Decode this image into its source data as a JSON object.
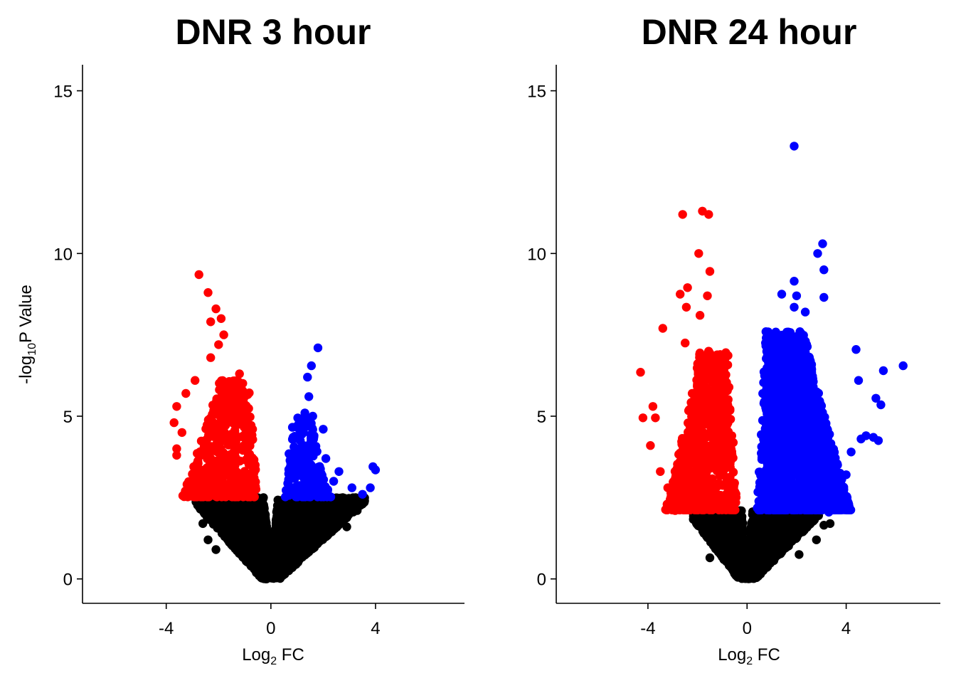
{
  "colors": {
    "down": "#ff0000",
    "up": "#0000ff",
    "ns": "#000000",
    "axis": "#000000",
    "background": "#ffffff"
  },
  "chart_data": [
    {
      "type": "scatter",
      "title": "DNR 3 hour",
      "xlabel_main": "Log",
      "xlabel_sub": "2",
      "xlabel_tail": " FC",
      "ylabel_pre": "-log",
      "ylabel_sub": "10",
      "ylabel_tail": "P Value",
      "xlim": [
        -7.2,
        7.4
      ],
      "ylim": [
        -0.75,
        15.8
      ],
      "xticks": [
        -4,
        0,
        4
      ],
      "xtick_labels": [
        "-4",
        "0",
        "4"
      ],
      "yticks": [
        0,
        5,
        10,
        15
      ],
      "ytick_labels": [
        "0",
        "5",
        "10",
        "15"
      ],
      "significance_threshold": 2.5,
      "grid": false,
      "legend": "none",
      "highlight_points": {
        "down": [
          [
            -2.75,
            9.35
          ],
          [
            -2.4,
            8.8
          ],
          [
            -2.1,
            8.3
          ],
          [
            -1.9,
            8.0
          ],
          [
            -2.3,
            7.9
          ],
          [
            -1.8,
            7.5
          ],
          [
            -2.0,
            7.2
          ],
          [
            -2.3,
            6.8
          ],
          [
            -2.9,
            6.1
          ],
          [
            -3.25,
            5.7
          ],
          [
            -3.6,
            5.3
          ],
          [
            -3.7,
            4.8
          ],
          [
            -3.4,
            4.5
          ],
          [
            -3.6,
            4.0
          ],
          [
            -3.6,
            3.8
          ],
          [
            -3.3,
            2.6
          ],
          [
            -1.2,
            6.3
          ],
          [
            -0.7,
            4.6
          ]
        ],
        "up": [
          [
            1.8,
            7.1
          ],
          [
            1.55,
            6.55
          ],
          [
            1.4,
            6.2
          ],
          [
            1.45,
            5.6
          ],
          [
            1.3,
            5.1
          ],
          [
            1.6,
            5.0
          ],
          [
            2.0,
            4.6
          ],
          [
            2.1,
            3.7
          ],
          [
            2.6,
            3.3
          ],
          [
            3.9,
            3.45
          ],
          [
            4.0,
            3.35
          ],
          [
            3.8,
            2.8
          ],
          [
            3.5,
            2.6
          ],
          [
            3.1,
            2.8
          ],
          [
            2.4,
            3.0
          ]
        ]
      },
      "cloud": {
        "down": {
          "x_range": [
            -3.4,
            -0.5
          ],
          "y_range": [
            2.5,
            6.1
          ],
          "n": 520
        },
        "up": {
          "x_range": [
            0.5,
            2.3
          ],
          "y_range": [
            2.5,
            5.0
          ],
          "n": 220
        },
        "ns_left": {
          "x_range": [
            -2.9,
            0
          ],
          "y_max": 2.5,
          "n": 1500
        },
        "ns_right": {
          "x_range": [
            0,
            3.6
          ],
          "y_max": 2.5,
          "n": 1700
        },
        "outliers": [
          [
            -2.4,
            1.2
          ],
          [
            -2.6,
            1.7
          ],
          [
            -2.1,
            0.9
          ],
          [
            3.3,
            2.1
          ],
          [
            3.5,
            2.3
          ],
          [
            2.9,
            1.6
          ]
        ]
      }
    },
    {
      "type": "scatter",
      "title": "DNR 24 hour",
      "xlabel_main": "Log",
      "xlabel_sub": "2",
      "xlabel_tail": " FC",
      "ylabel_pre": "",
      "ylabel_sub": "",
      "ylabel_tail": "",
      "xlim": [
        -7.7,
        7.8
      ],
      "ylim": [
        -0.75,
        15.8
      ],
      "xticks": [
        -4,
        0,
        4
      ],
      "xtick_labels": [
        "-4",
        "0",
        "4"
      ],
      "yticks": [
        0,
        5,
        10,
        15
      ],
      "ytick_labels": [
        "0",
        "5",
        "10",
        "15"
      ],
      "significance_threshold": 2.1,
      "grid": false,
      "legend": "none",
      "highlight_points": {
        "down": [
          [
            -2.6,
            11.2
          ],
          [
            -1.8,
            11.3
          ],
          [
            -1.55,
            11.2
          ],
          [
            -1.95,
            10.0
          ],
          [
            -1.5,
            9.45
          ],
          [
            -2.4,
            8.95
          ],
          [
            -2.45,
            8.35
          ],
          [
            -2.7,
            8.75
          ],
          [
            -1.6,
            8.7
          ],
          [
            -1.9,
            8.1
          ],
          [
            -3.4,
            7.7
          ],
          [
            -2.5,
            7.25
          ],
          [
            -4.3,
            6.35
          ],
          [
            -3.8,
            5.3
          ],
          [
            -4.2,
            4.95
          ],
          [
            -3.7,
            4.95
          ],
          [
            -3.9,
            4.1
          ],
          [
            -3.5,
            3.3
          ],
          [
            -3.2,
            2.8
          ],
          [
            -3.1,
            2.45
          ],
          [
            -2.9,
            2.1
          ]
        ],
        "up": [
          [
            1.9,
            13.3
          ],
          [
            3.05,
            10.3
          ],
          [
            2.85,
            10.0
          ],
          [
            3.1,
            9.5
          ],
          [
            1.9,
            9.15
          ],
          [
            1.4,
            8.75
          ],
          [
            2.0,
            8.7
          ],
          [
            3.1,
            8.65
          ],
          [
            1.9,
            8.35
          ],
          [
            2.35,
            8.2
          ],
          [
            4.4,
            7.05
          ],
          [
            6.3,
            6.55
          ],
          [
            5.5,
            6.4
          ],
          [
            4.5,
            6.1
          ],
          [
            5.2,
            5.55
          ],
          [
            5.4,
            5.35
          ],
          [
            5.1,
            4.35
          ],
          [
            5.3,
            4.25
          ],
          [
            4.8,
            4.4
          ],
          [
            4.6,
            4.3
          ],
          [
            4.2,
            3.9
          ],
          [
            4.0,
            3.2
          ],
          [
            3.5,
            2.6
          ],
          [
            3.2,
            2.3
          ],
          [
            3.3,
            2.05
          ],
          [
            1.0,
            6.05
          ]
        ]
      },
      "cloud": {
        "down": {
          "x_range": [
            -3.3,
            -0.4
          ],
          "y_range": [
            2.1,
            7.0
          ],
          "n": 780
        },
        "up": {
          "x_range": [
            0.4,
            4.2
          ],
          "y_range": [
            2.1,
            7.6
          ],
          "n": 1700
        },
        "ns_left": {
          "x_range": [
            -2.2,
            0
          ],
          "y_max": 2.1,
          "n": 1100
        },
        "ns_right": {
          "x_range": [
            0,
            2.9
          ],
          "y_max": 2.1,
          "n": 1300
        },
        "outliers": [
          [
            -1.5,
            0.65
          ],
          [
            -1.6,
            1.3
          ],
          [
            2.1,
            0.75
          ],
          [
            3.35,
            1.7
          ],
          [
            3.1,
            1.65
          ],
          [
            2.8,
            1.2
          ]
        ]
      }
    }
  ]
}
